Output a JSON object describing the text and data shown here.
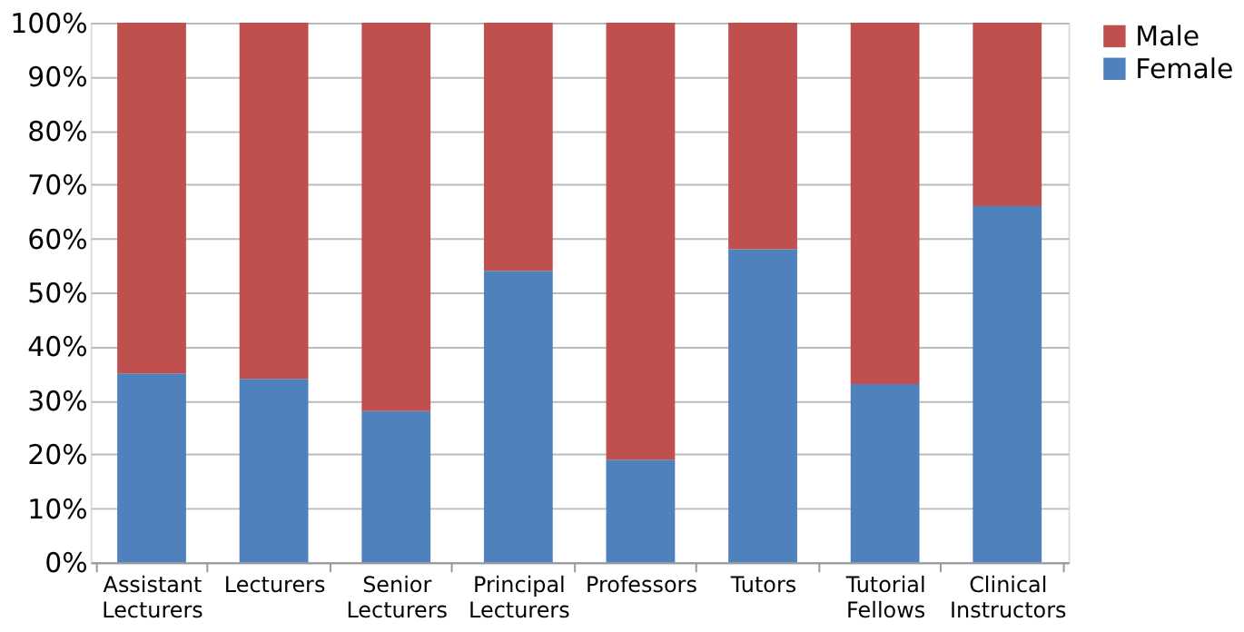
{
  "chart_data": {
    "type": "bar",
    "stacked": true,
    "categories": [
      "Assistant Lecturers",
      "Lecturers",
      "Senior Lecturers",
      "Principal Lecturers",
      "Professors",
      "Tutors",
      "Tutorial Fellows",
      "Clinical Instructors"
    ],
    "series": [
      {
        "name": "Female",
        "color": "#4f81bd",
        "values": [
          35,
          34,
          28,
          54,
          19,
          58,
          33,
          66
        ]
      },
      {
        "name": "Male",
        "color": "#c0504d",
        "values": [
          65,
          66,
          72,
          46,
          81,
          42,
          67,
          34
        ]
      }
    ],
    "ylim": [
      0,
      100
    ],
    "yticks": [
      {
        "value": 0,
        "label": "0%"
      },
      {
        "value": 10,
        "label": "10%"
      },
      {
        "value": 20,
        "label": "20%"
      },
      {
        "value": 30,
        "label": "30%"
      },
      {
        "value": 40,
        "label": "40%"
      },
      {
        "value": 50,
        "label": "50%"
      },
      {
        "value": 60,
        "label": "60%"
      },
      {
        "value": 70,
        "label": "70%"
      },
      {
        "value": 80,
        "label": "80%"
      },
      {
        "value": 90,
        "label": "90%"
      },
      {
        "value": 100,
        "label": "100%"
      }
    ],
    "grid": "y",
    "legend": "right"
  }
}
